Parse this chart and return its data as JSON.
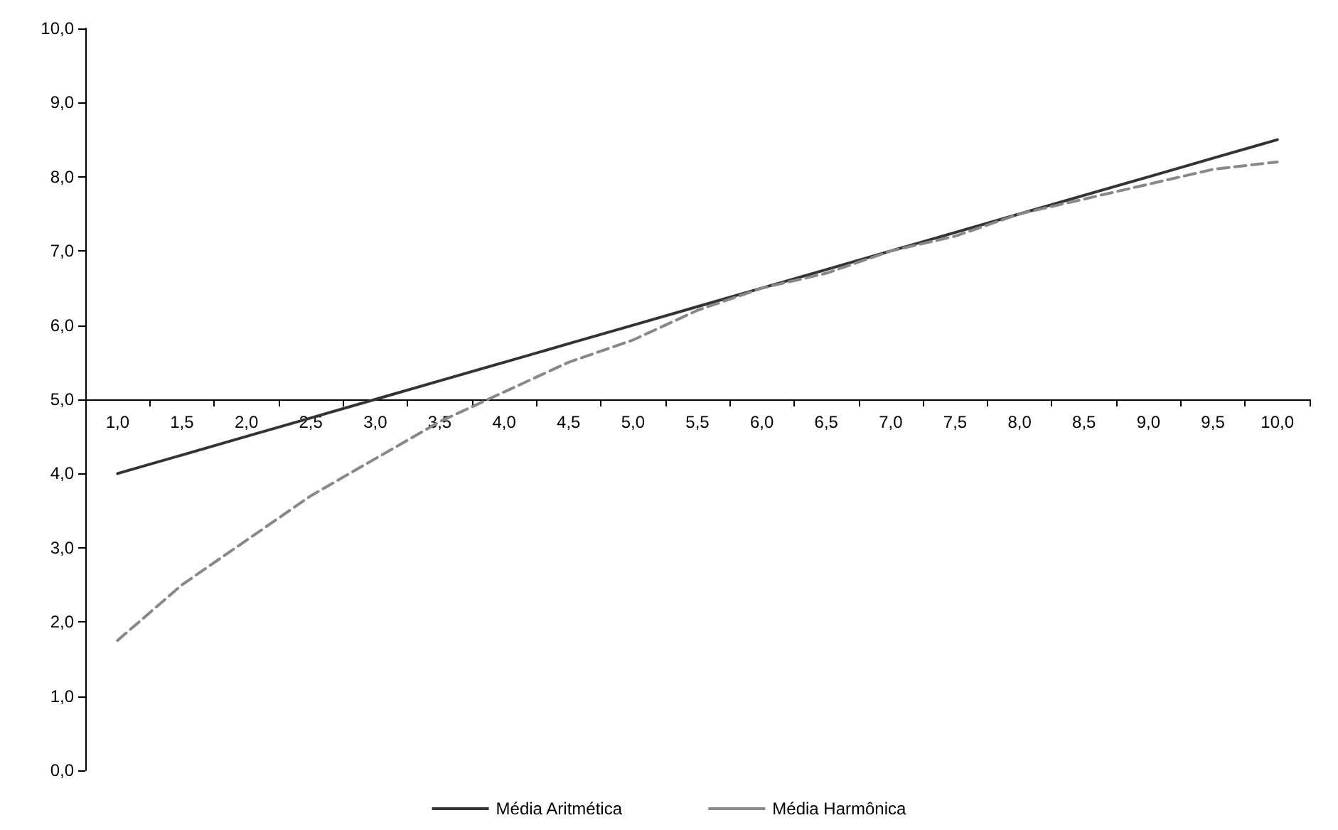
{
  "chart_data": {
    "type": "line",
    "categories": [
      "1,0",
      "1,5",
      "2,0",
      "2,5",
      "3,0",
      "3,5",
      "4,0",
      "4,5",
      "5,0",
      "5,5",
      "6,0",
      "6,5",
      "7,0",
      "7,5",
      "8,0",
      "8,5",
      "9,0",
      "9,5",
      "10,0"
    ],
    "series": [
      {
        "name": "Média Aritmética",
        "color": "#333333",
        "line_style": "solid",
        "values": [
          4.0,
          4.25,
          4.5,
          4.75,
          5.0,
          5.25,
          5.5,
          5.75,
          6.0,
          6.25,
          6.5,
          6.75,
          7.0,
          7.25,
          7.5,
          7.75,
          8.0,
          8.25,
          8.5
        ]
      },
      {
        "name": "Média Harmônica",
        "color": "#888888",
        "line_style": "dashed",
        "values": [
          1.75,
          2.5,
          3.1,
          3.7,
          4.2,
          4.7,
          5.1,
          5.5,
          5.8,
          6.2,
          6.5,
          6.7,
          7.0,
          7.2,
          7.5,
          7.7,
          7.9,
          8.1,
          8.2
        ]
      }
    ],
    "ylim": [
      0,
      10
    ],
    "yticks": [
      {
        "value": 0,
        "label": "0,0"
      },
      {
        "value": 1,
        "label": "1,0"
      },
      {
        "value": 2,
        "label": "2,0"
      },
      {
        "value": 3,
        "label": "3,0"
      },
      {
        "value": 4,
        "label": "4,0"
      },
      {
        "value": 5,
        "label": "5,0"
      },
      {
        "value": 6,
        "label": "6,0"
      },
      {
        "value": 7,
        "label": "7,0"
      },
      {
        "value": 8,
        "label": "8,0"
      },
      {
        "value": 9,
        "label": "9,0"
      },
      {
        "value": 10,
        "label": "10,0"
      }
    ],
    "legend": "bottom",
    "grid": false,
    "marker": "none"
  }
}
